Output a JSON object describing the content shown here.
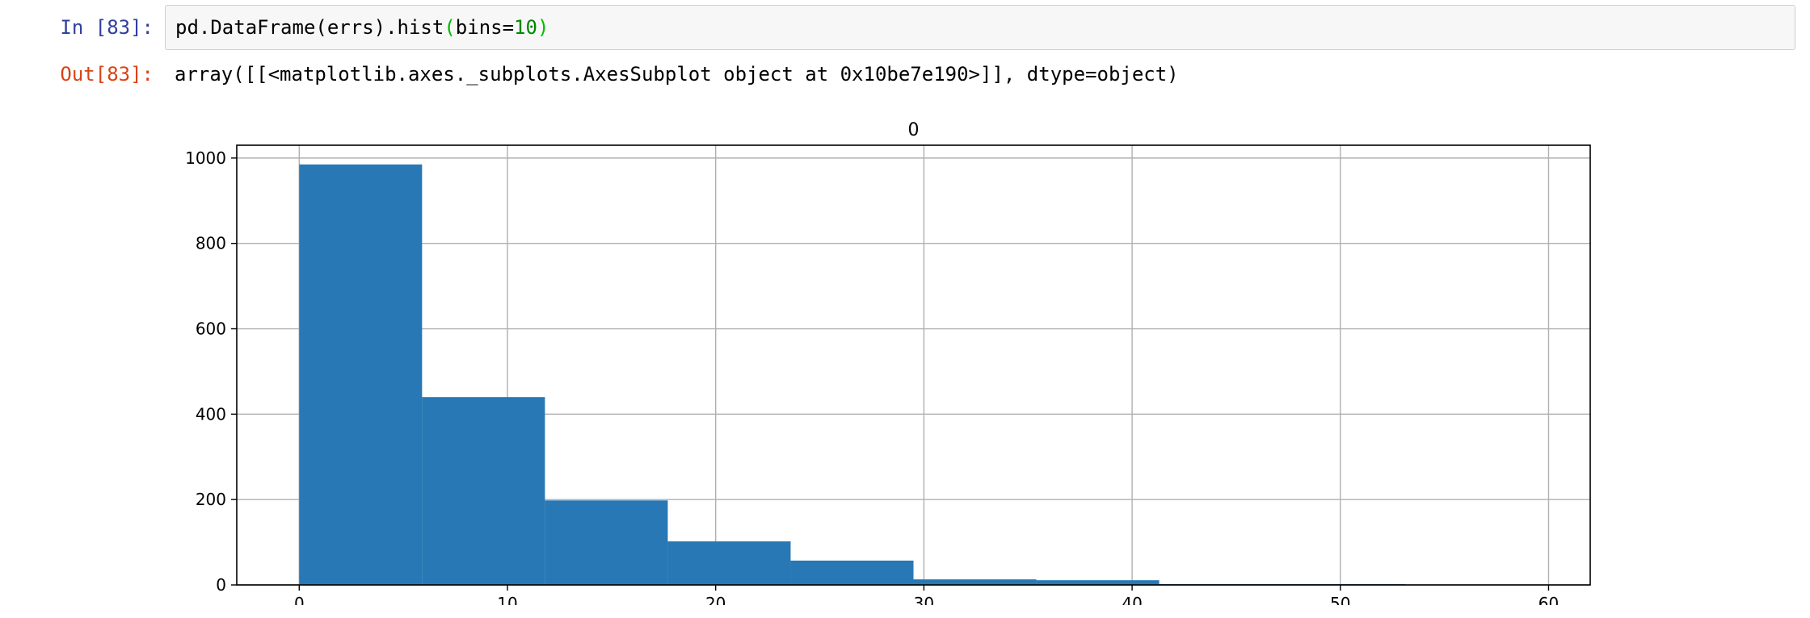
{
  "notebook": {
    "input_prompt": "In [83]:",
    "output_prompt": "Out[83]:",
    "code": {
      "part_a": "pd.DataFrame(errs).hist",
      "paren_open": "(",
      "part_b": "bins=",
      "number": "10",
      "paren_close": ")"
    },
    "output_text": "array([[<matplotlib.axes._subplots.AxesSubplot object at 0x10be7e190>]], dtype=object)",
    "colors": {
      "input_prompt": "#303f9f",
      "output_prompt": "#d84315",
      "code_paren": "#00bb00",
      "code_number": "#008800",
      "cell_background": "#f7f7f7",
      "cell_border": "#cfcfcf"
    }
  },
  "chart_data": {
    "type": "bar",
    "title": "0",
    "xlabel": "",
    "ylabel": "",
    "xlim": [
      -3,
      62
    ],
    "ylim": [
      0,
      1030
    ],
    "xticks": [
      0,
      10,
      20,
      30,
      40,
      50,
      60
    ],
    "yticks": [
      0,
      200,
      400,
      600,
      800,
      1000
    ],
    "grid": true,
    "bar_color": "#2878b5",
    "bins": [
      0,
      5.9,
      11.8,
      17.7,
      23.6,
      29.5,
      35.4,
      41.3,
      47.2,
      53.1
    ],
    "bin_width": 5.9,
    "values": [
      985,
      440,
      198,
      102,
      57,
      13,
      11,
      2,
      2,
      0
    ]
  }
}
